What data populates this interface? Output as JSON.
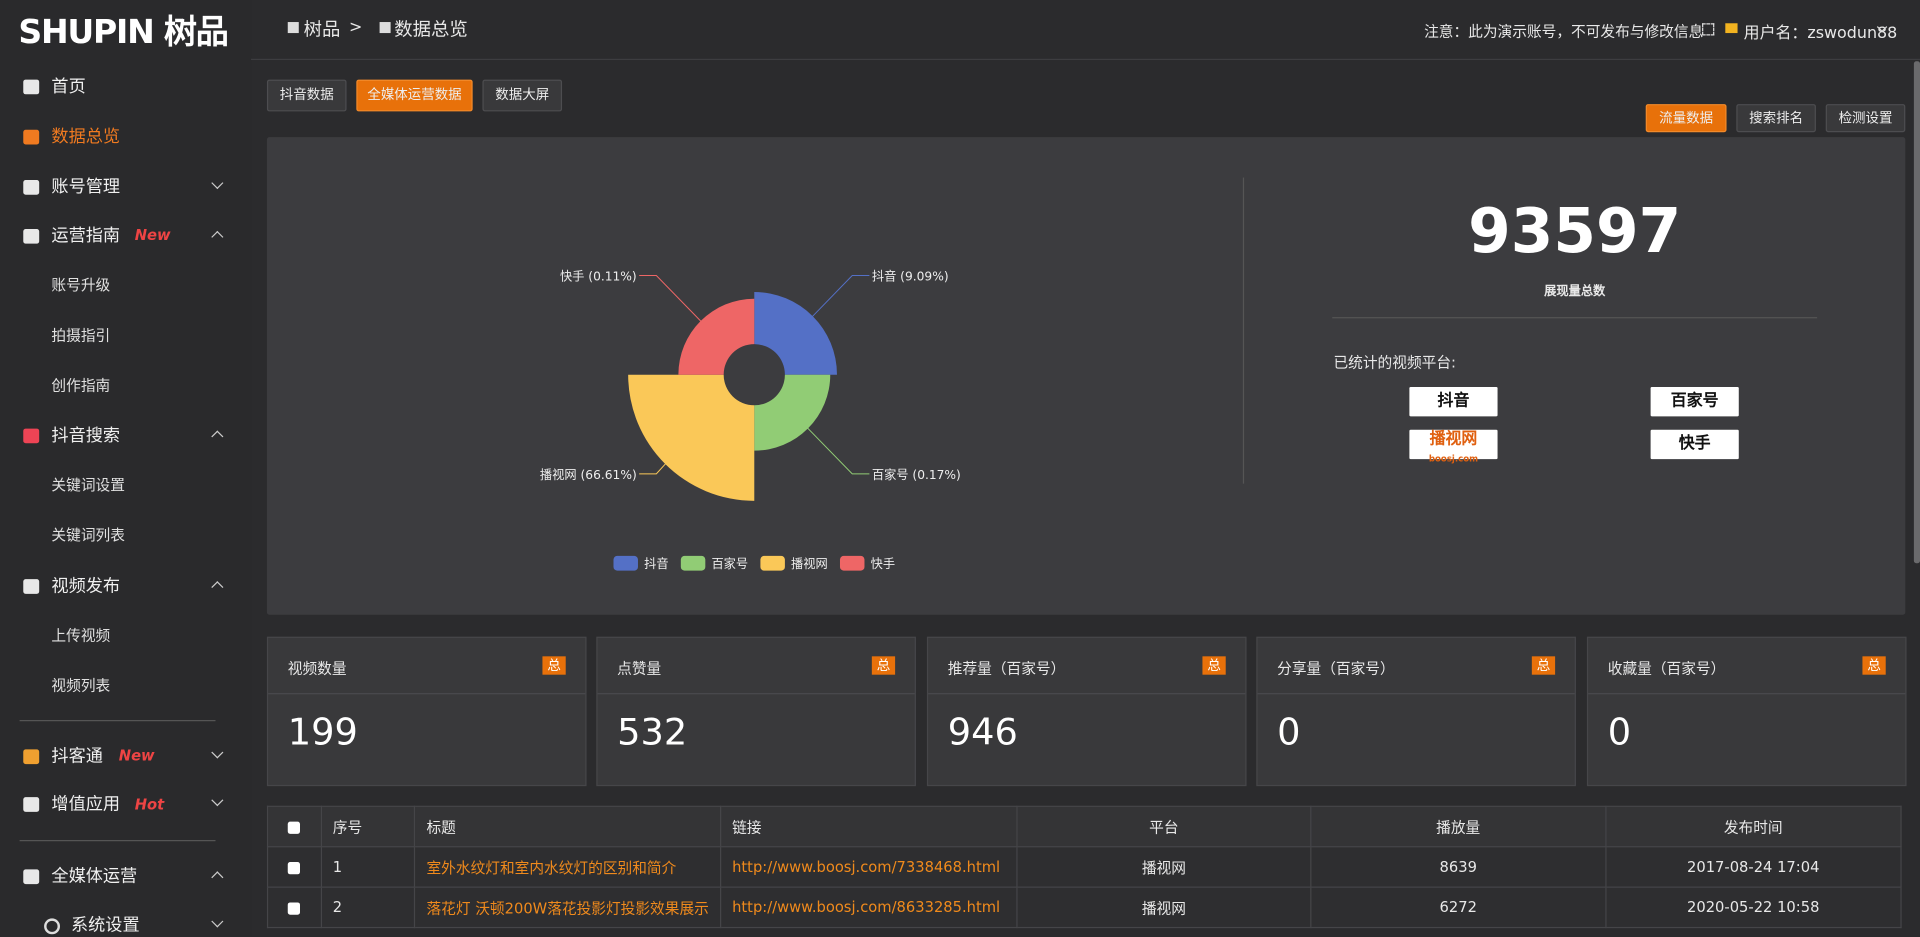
{
  "brand": {
    "name": "SHUPIN",
    "cn": "树品"
  },
  "sidebar": {
    "items": [
      "首页",
      "数据总览",
      "账号管理",
      "运营指南",
      "账号升级",
      "拍摄指引",
      "创作指南",
      "抖音搜索",
      "关键词设置",
      "关键词列表",
      "视频发布",
      "上传视频",
      "视频列表",
      "抖客通",
      "增值应用",
      "全媒体运营",
      "系统设置"
    ],
    "badges": [
      "New",
      "New",
      "Hot"
    ]
  },
  "header": {
    "breadcrumb": [
      "树品",
      ">",
      "数据总览"
    ],
    "notice": "注意：此为演示账号，不可发布与修改信息",
    "user": "用户名：zswodun88"
  },
  "tabs": [
    "抖音数据",
    "全媒体运营数据",
    "数据大屏"
  ],
  "subtabs": [
    "流量数据",
    "搜索排名",
    "检测设置"
  ],
  "chart_data": {
    "type": "pie",
    "rose": true,
    "categories": [
      "抖音",
      "百家号",
      "播视网",
      "快手"
    ],
    "values": [
      9.09,
      0.17,
      66.61,
      0.11
    ],
    "value_labels": [
      "抖音 (9.09%)",
      "百家号 (0.17%)",
      "播视网 (66.61%)",
      "快手 (0.11%)"
    ],
    "colors": [
      "#5470c6",
      "#91cc75",
      "#fac858",
      "#ee6666"
    ]
  },
  "summary": {
    "total": 93597,
    "total_label": "展现量总数",
    "platforms_title": "已统计的视频平台:",
    "platforms": [
      "抖音",
      "百家号",
      "播视网",
      "快手"
    ],
    "boosj": "boosj.com"
  },
  "stats": [
    {
      "label": "视频数量",
      "badge": "总",
      "value": 199
    },
    {
      "label": "点赞量",
      "badge": "总",
      "value": 532
    },
    {
      "label": "推荐量（百家号）",
      "badge": "总",
      "value": 946
    },
    {
      "label": "分享量（百家号）",
      "badge": "总",
      "value": 0
    },
    {
      "label": "收藏量（百家号）",
      "badge": "总",
      "value": 0
    }
  ],
  "table": {
    "headers": [
      "序号",
      "标题",
      "链接",
      "平台",
      "播放量",
      "发布时间"
    ],
    "rows": [
      [
        "1",
        "室外水纹灯和室内水纹灯的区别和简介",
        "http://www.boosj.com/7338468.html",
        "播视网",
        "8639",
        "2017-08-24 17:04"
      ],
      [
        "2",
        "落花灯 沃顿200W落花投影灯投影效果展示",
        "http://www.boosj.com/8633285.html",
        "播视网",
        "6272",
        "2020-05-22 10:58"
      ]
    ]
  }
}
